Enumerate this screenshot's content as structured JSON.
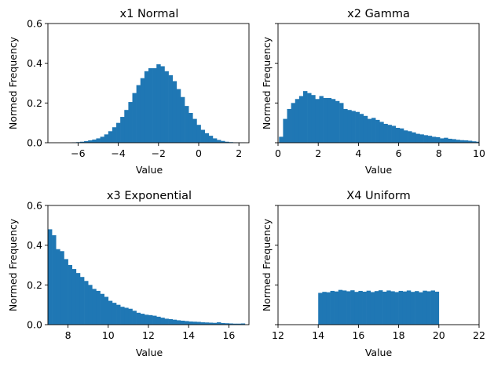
{
  "figure": {
    "bar_color": "#1f77b4",
    "background": "#ffffff",
    "sharey": true
  },
  "chart_data": [
    {
      "type": "bar",
      "title": "x1 Normal",
      "xlabel": "Value",
      "ylabel": "Normed Frequency",
      "xlim": [
        -7.5,
        2.5
      ],
      "ylim": [
        0,
        0.6
      ],
      "xticks": [
        -6,
        -4,
        -2,
        0,
        2
      ],
      "yticks": [
        0.0,
        0.2,
        0.4,
        0.6
      ],
      "ytick_labels": [
        "0.0",
        "0.2",
        "0.4",
        "0.6"
      ],
      "show_ytick_labels": true,
      "bin_edges_start": -6.3,
      "bin_width": 0.2,
      "values": [
        0.002,
        0.003,
        0.005,
        0.008,
        0.012,
        0.016,
        0.022,
        0.03,
        0.042,
        0.058,
        0.078,
        0.1,
        0.13,
        0.165,
        0.205,
        0.25,
        0.29,
        0.325,
        0.36,
        0.375,
        0.375,
        0.395,
        0.385,
        0.36,
        0.34,
        0.31,
        0.27,
        0.23,
        0.185,
        0.15,
        0.12,
        0.09,
        0.065,
        0.048,
        0.035,
        0.022,
        0.014,
        0.009,
        0.005,
        0.003,
        0.002,
        0.001,
        0.001
      ]
    },
    {
      "type": "bar",
      "title": "x2 Gamma",
      "xlabel": "Value",
      "ylabel": "Normed Frequency",
      "xlim": [
        0,
        10
      ],
      "ylim": [
        0,
        0.6
      ],
      "xticks": [
        0,
        2,
        4,
        6,
        8,
        10
      ],
      "yticks": [
        0.0,
        0.2,
        0.4,
        0.6
      ],
      "ytick_labels": [
        "0.0",
        "0.2",
        "0.4",
        "0.6"
      ],
      "show_ytick_labels": false,
      "bin_edges_start": 0.05,
      "bin_width": 0.2,
      "values": [
        0.03,
        0.12,
        0.17,
        0.2,
        0.22,
        0.235,
        0.26,
        0.25,
        0.24,
        0.22,
        0.235,
        0.225,
        0.225,
        0.22,
        0.21,
        0.2,
        0.17,
        0.165,
        0.16,
        0.155,
        0.145,
        0.135,
        0.12,
        0.125,
        0.115,
        0.105,
        0.095,
        0.09,
        0.085,
        0.075,
        0.072,
        0.062,
        0.058,
        0.052,
        0.045,
        0.042,
        0.038,
        0.035,
        0.03,
        0.028,
        0.022,
        0.025,
        0.02,
        0.018,
        0.015,
        0.013,
        0.012,
        0.01,
        0.007,
        0.005
      ]
    },
    {
      "type": "bar",
      "title": "x3 Exponential",
      "xlabel": "Value",
      "ylabel": "Normed Frequency",
      "xlim": [
        7,
        17
      ],
      "ylim": [
        0,
        0.6
      ],
      "xticks": [
        8,
        10,
        12,
        14,
        16
      ],
      "yticks": [
        0.0,
        0.2,
        0.4,
        0.6
      ],
      "ytick_labels": [
        "0.0",
        "0.2",
        "0.4",
        "0.6"
      ],
      "show_ytick_labels": true,
      "bin_edges_start": 7.0,
      "bin_width": 0.2,
      "values": [
        0.48,
        0.45,
        0.38,
        0.37,
        0.33,
        0.3,
        0.28,
        0.26,
        0.24,
        0.22,
        0.2,
        0.18,
        0.17,
        0.155,
        0.14,
        0.12,
        0.11,
        0.1,
        0.09,
        0.085,
        0.08,
        0.07,
        0.06,
        0.055,
        0.05,
        0.048,
        0.045,
        0.04,
        0.035,
        0.03,
        0.028,
        0.025,
        0.022,
        0.02,
        0.018,
        0.016,
        0.015,
        0.014,
        0.012,
        0.011,
        0.01,
        0.009,
        0.012,
        0.008,
        0.007,
        0.006,
        0.005,
        0.005,
        0.006
      ]
    },
    {
      "type": "bar",
      "title": "X4 Uniform",
      "xlabel": "Value",
      "ylabel": "Normed Frequency",
      "xlim": [
        12,
        22
      ],
      "ylim": [
        0,
        0.6
      ],
      "xticks": [
        12,
        14,
        16,
        18,
        20,
        22
      ],
      "yticks": [
        0.0,
        0.2,
        0.4,
        0.6
      ],
      "ytick_labels": [
        "0.0",
        "0.2",
        "0.4",
        "0.6"
      ],
      "show_ytick_labels": false,
      "bin_edges_start": 14.0,
      "bin_width": 0.2,
      "values": [
        0.16,
        0.165,
        0.163,
        0.17,
        0.167,
        0.175,
        0.172,
        0.168,
        0.173,
        0.165,
        0.17,
        0.166,
        0.171,
        0.164,
        0.169,
        0.173,
        0.166,
        0.172,
        0.168,
        0.164,
        0.17,
        0.167,
        0.172,
        0.165,
        0.169,
        0.163,
        0.171,
        0.168,
        0.172,
        0.166
      ]
    }
  ]
}
